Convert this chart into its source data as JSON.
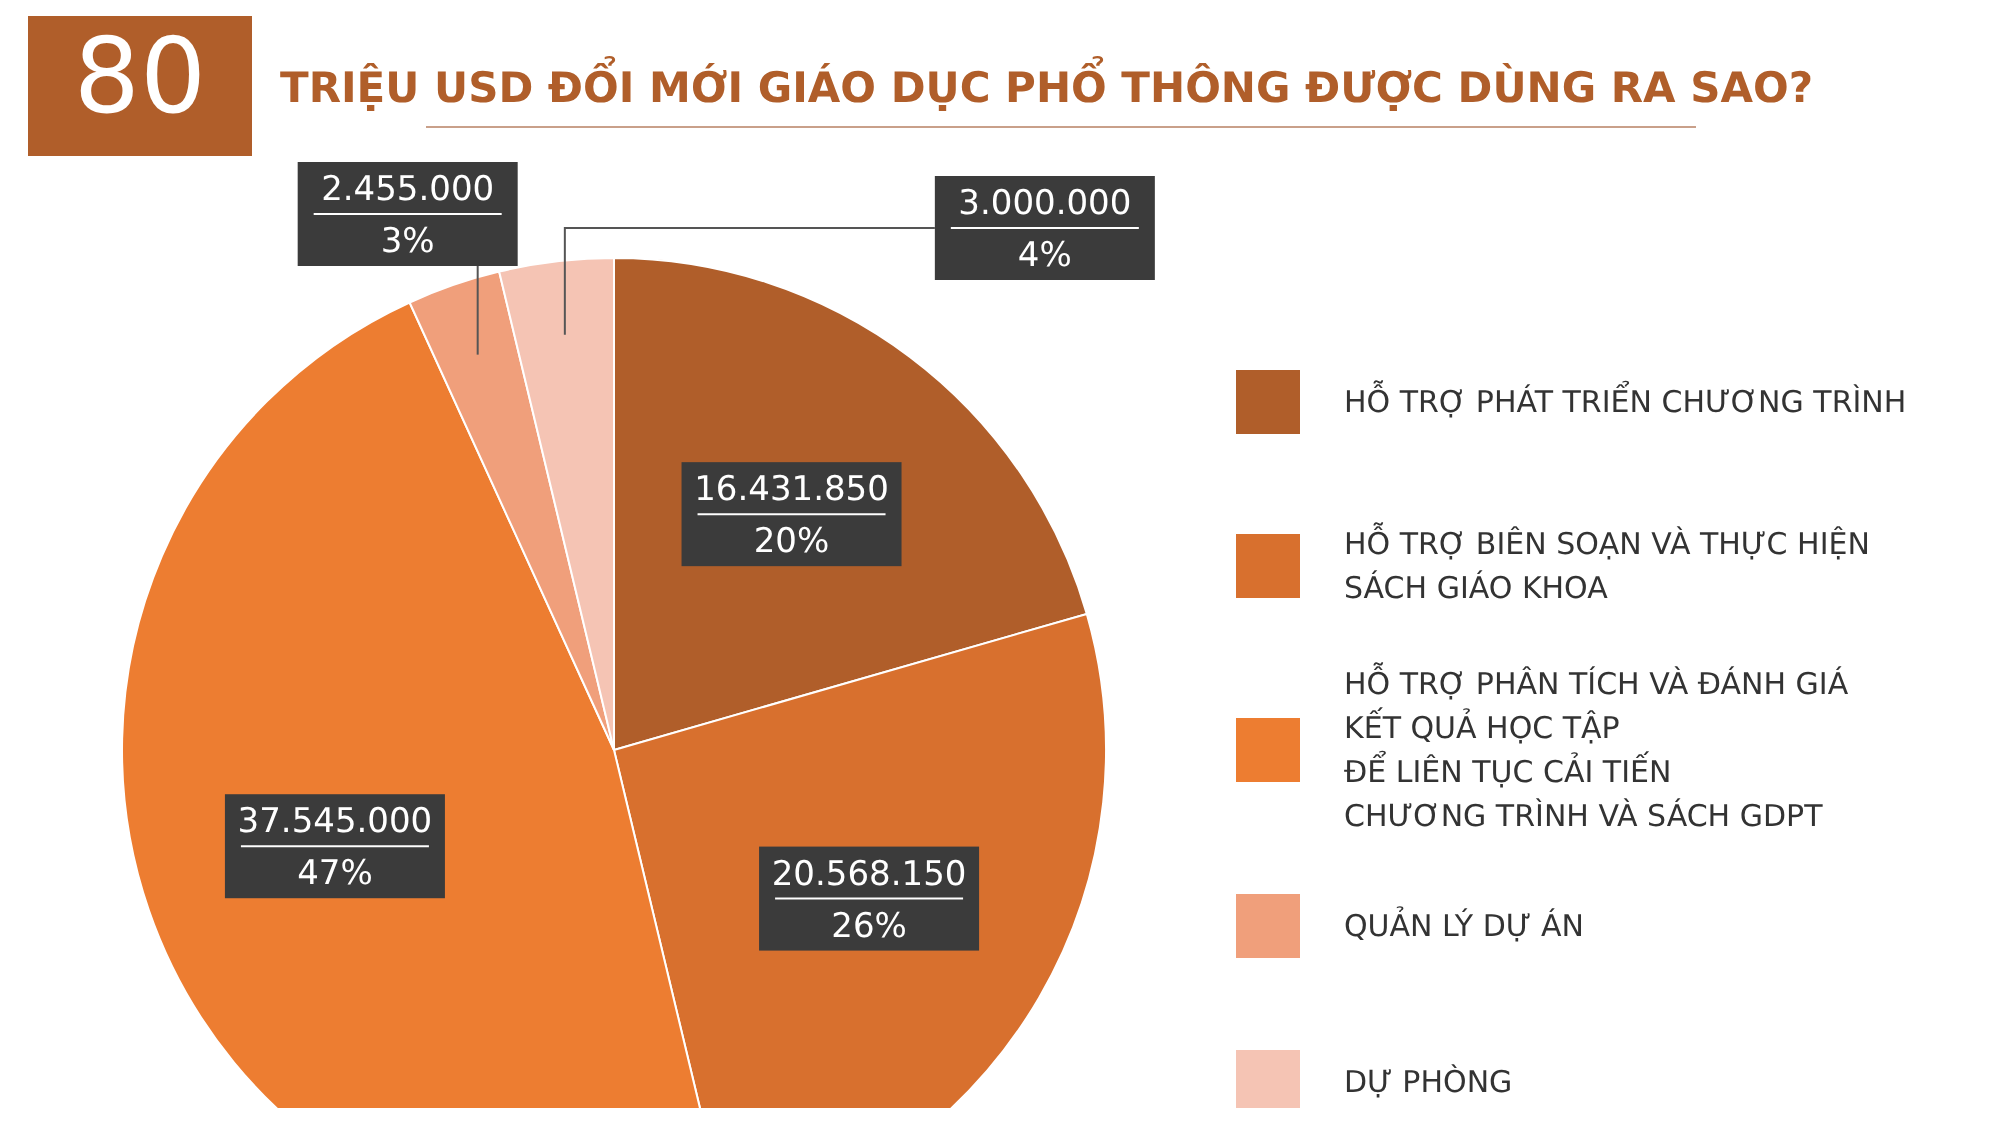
{
  "chart_data": {
    "type": "pie",
    "title": "80 TRIỆU USD ĐỔI MỚI GIÁO DỤC PHỔ THÔNG ĐƯỢC DÙNG RA SAO?",
    "categories": [
      "HỖ TRỢ PHÁT TRIỂN CHƯƠNG TRÌNH",
      "HỖ TRỢ BIÊN SOẠN VÀ THỰC HIỆN\nSÁCH GIÁO KHOA",
      "HỖ TRỢ PHÂN TÍCH VÀ ĐÁNH GIÁ\nKẾT QUẢ HỌC TẬP\nĐỂ LIÊN TỤC CẢI TIẾN\nCHƯƠNG TRÌNH VÀ SÁCH GDPT",
      "QUẢN LÝ DỰ ÁN",
      "DỰ PHÒNG"
    ],
    "values": [
      16431850,
      20568150,
      37545000,
      2455000,
      3000000
    ],
    "value_labels": [
      "16.431.850\n20%",
      "20.568.150\n26%",
      "37.545.000\n47%",
      "2.455.000\n3%",
      "3.000.000\n4%"
    ],
    "colors": [
      "#b05e2a",
      "#d8702e",
      "#ed7d31",
      "#f09f7b",
      "#f5c4b4"
    ],
    "legend": "right"
  }
}
